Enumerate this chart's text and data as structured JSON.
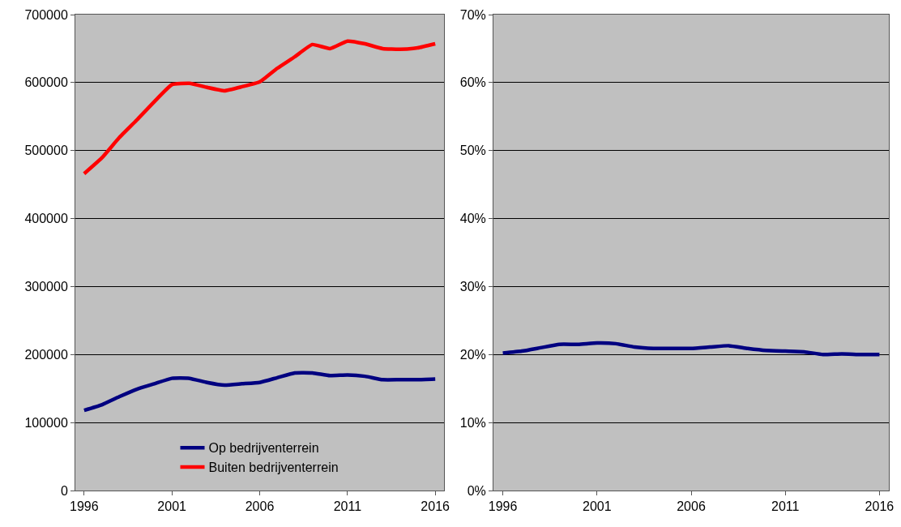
{
  "chart_data": [
    {
      "type": "line",
      "x": [
        1996,
        1997,
        1998,
        1999,
        2000,
        2001,
        2002,
        2003,
        2004,
        2005,
        2006,
        2007,
        2008,
        2009,
        2010,
        2011,
        2012,
        2013,
        2014,
        2015,
        2016
      ],
      "series": [
        {
          "name": "Op bedrijventerrein",
          "color": "#000080",
          "values": [
            118000,
            126000,
            138000,
            149000,
            157000,
            165000,
            165000,
            159000,
            155000,
            157000,
            159000,
            166000,
            173000,
            173000,
            169000,
            170000,
            168000,
            163000,
            163000,
            163000,
            164000
          ]
        },
        {
          "name": "Buiten bedrijventerrein",
          "color": "#ff0000",
          "values": [
            466000,
            489000,
            519000,
            545000,
            572000,
            597000,
            599000,
            593000,
            588000,
            594000,
            601000,
            621000,
            638000,
            656000,
            650000,
            661000,
            657000,
            650000,
            649000,
            651000,
            657000
          ]
        }
      ],
      "xlim": [
        1995.5,
        2016.5
      ],
      "xticks": [
        1996,
        2001,
        2006,
        2011,
        2016
      ],
      "ylim": [
        0,
        700000
      ],
      "yticks": [
        0,
        100000,
        200000,
        300000,
        400000,
        500000,
        600000,
        700000
      ],
      "grid": "y",
      "legend": "bottom",
      "marker": "none",
      "line_style": "solid"
    },
    {
      "type": "line",
      "x": [
        1996,
        1997,
        1998,
        1999,
        2000,
        2001,
        2002,
        2003,
        2004,
        2005,
        2006,
        2007,
        2008,
        2009,
        2010,
        2011,
        2012,
        2013,
        2014,
        2015,
        2016
      ],
      "series": [
        {
          "color": "#000080",
          "values": [
            20.2,
            20.5,
            21.0,
            21.5,
            21.5,
            21.7,
            21.6,
            21.1,
            20.9,
            20.9,
            20.9,
            21.1,
            21.3,
            20.9,
            20.6,
            20.5,
            20.4,
            20.0,
            20.1,
            20.0,
            20.0
          ]
        }
      ],
      "xlim": [
        1995.5,
        2016.5
      ],
      "xticks": [
        1996,
        2001,
        2006,
        2011,
        2016
      ],
      "ylim": [
        0,
        70
      ],
      "yticks": [
        {
          "value": 0,
          "label": "0%"
        },
        {
          "value": 10,
          "label": "10%"
        },
        {
          "value": 20,
          "label": "20%"
        },
        {
          "value": 30,
          "label": "30%"
        },
        {
          "value": 40,
          "label": "40%"
        },
        {
          "value": 50,
          "label": "50%"
        },
        {
          "value": 60,
          "label": "60%"
        },
        {
          "value": 70,
          "label": "70%"
        }
      ],
      "grid": "y",
      "legend": false,
      "marker": "none",
      "line_style": "solid"
    }
  ]
}
